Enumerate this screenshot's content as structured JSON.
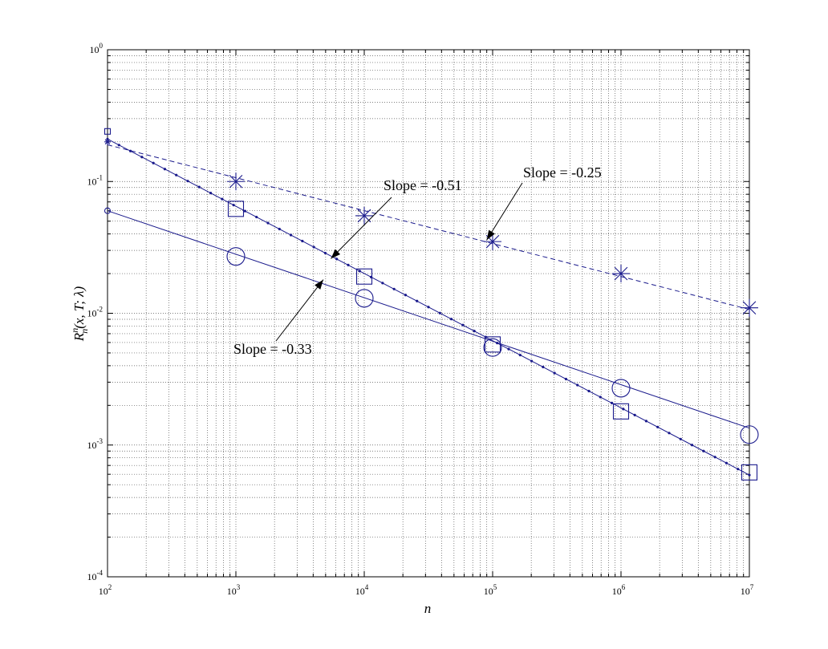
{
  "chart_data": {
    "type": "line",
    "title": "",
    "xlabel": "n",
    "ylabel": {
      "base": "R",
      "superscript": "n",
      "subscript": "n",
      "args": "(x, T; λ)"
    },
    "x_scale": "log",
    "y_scale": "log",
    "xlim": [
      100,
      10000000
    ],
    "ylim": [
      0.0001,
      1
    ],
    "grid": true,
    "x_ticks": [
      {
        "value": 100,
        "base": "10",
        "exp": "2"
      },
      {
        "value": 1000,
        "base": "10",
        "exp": "3"
      },
      {
        "value": 10000,
        "base": "10",
        "exp": "4"
      },
      {
        "value": 100000,
        "base": "10",
        "exp": "5"
      },
      {
        "value": 1000000,
        "base": "10",
        "exp": "6"
      },
      {
        "value": 10000000,
        "base": "10",
        "exp": "7"
      }
    ],
    "y_ticks": [
      {
        "value": 0.0001,
        "base": "10",
        "exp": "-4"
      },
      {
        "value": 0.001,
        "base": "10",
        "exp": "-3"
      },
      {
        "value": 0.01,
        "base": "10",
        "exp": "-2"
      },
      {
        "value": 0.1,
        "base": "10",
        "exp": "-1"
      },
      {
        "value": 1,
        "base": "10",
        "exp": "0"
      }
    ],
    "series": [
      {
        "key": "star",
        "line_style": "dashed",
        "marker": "star",
        "color": "#1a1a8c",
        "fit": {
          "x0": 100,
          "y0": 0.19,
          "slope": -0.25
        },
        "markers": [
          {
            "x": 1000,
            "y": 0.1
          },
          {
            "x": 10000,
            "y": 0.055
          },
          {
            "x": 100000,
            "y": 0.035
          },
          {
            "x": 1000000,
            "y": 0.02
          },
          {
            "x": 10000000,
            "y": 0.011
          }
        ],
        "start_marker": {
          "x": 100,
          "y": 0.2
        }
      },
      {
        "key": "square",
        "line_style": "dotted-solid",
        "marker": "square",
        "color": "#1a1a8c",
        "fit": {
          "x0": 100,
          "y0": 0.21,
          "slope": -0.51
        },
        "markers": [
          {
            "x": 1000,
            "y": 0.062
          },
          {
            "x": 10000,
            "y": 0.019
          },
          {
            "x": 100000,
            "y": 0.0058
          },
          {
            "x": 1000000,
            "y": 0.0018
          },
          {
            "x": 10000000,
            "y": 0.00062
          }
        ],
        "start_marker": {
          "x": 100,
          "y": 0.24
        }
      },
      {
        "key": "circle",
        "line_style": "solid",
        "marker": "circle",
        "color": "#1a1a8c",
        "fit": {
          "x0": 100,
          "y0": 0.06,
          "slope": -0.33
        },
        "markers": [
          {
            "x": 1000,
            "y": 0.027
          },
          {
            "x": 10000,
            "y": 0.013
          },
          {
            "x": 100000,
            "y": 0.0055
          },
          {
            "x": 1000000,
            "y": 0.0027
          },
          {
            "x": 10000000,
            "y": 0.0012
          }
        ],
        "start_marker": {
          "x": 100,
          "y": 0.06
        }
      }
    ],
    "annotations": [
      {
        "key": "slope-051",
        "text": "Slope = -0.51",
        "arrow_to": {
          "x": 5500,
          "y": 0.026
        }
      },
      {
        "key": "slope-025",
        "text": "Slope = -0.25",
        "arrow_to": {
          "x": 90000,
          "y": 0.036
        }
      },
      {
        "key": "slope-033",
        "text": "Slope = -0.33",
        "arrow_to": {
          "x": 4800,
          "y": 0.018
        }
      }
    ]
  }
}
